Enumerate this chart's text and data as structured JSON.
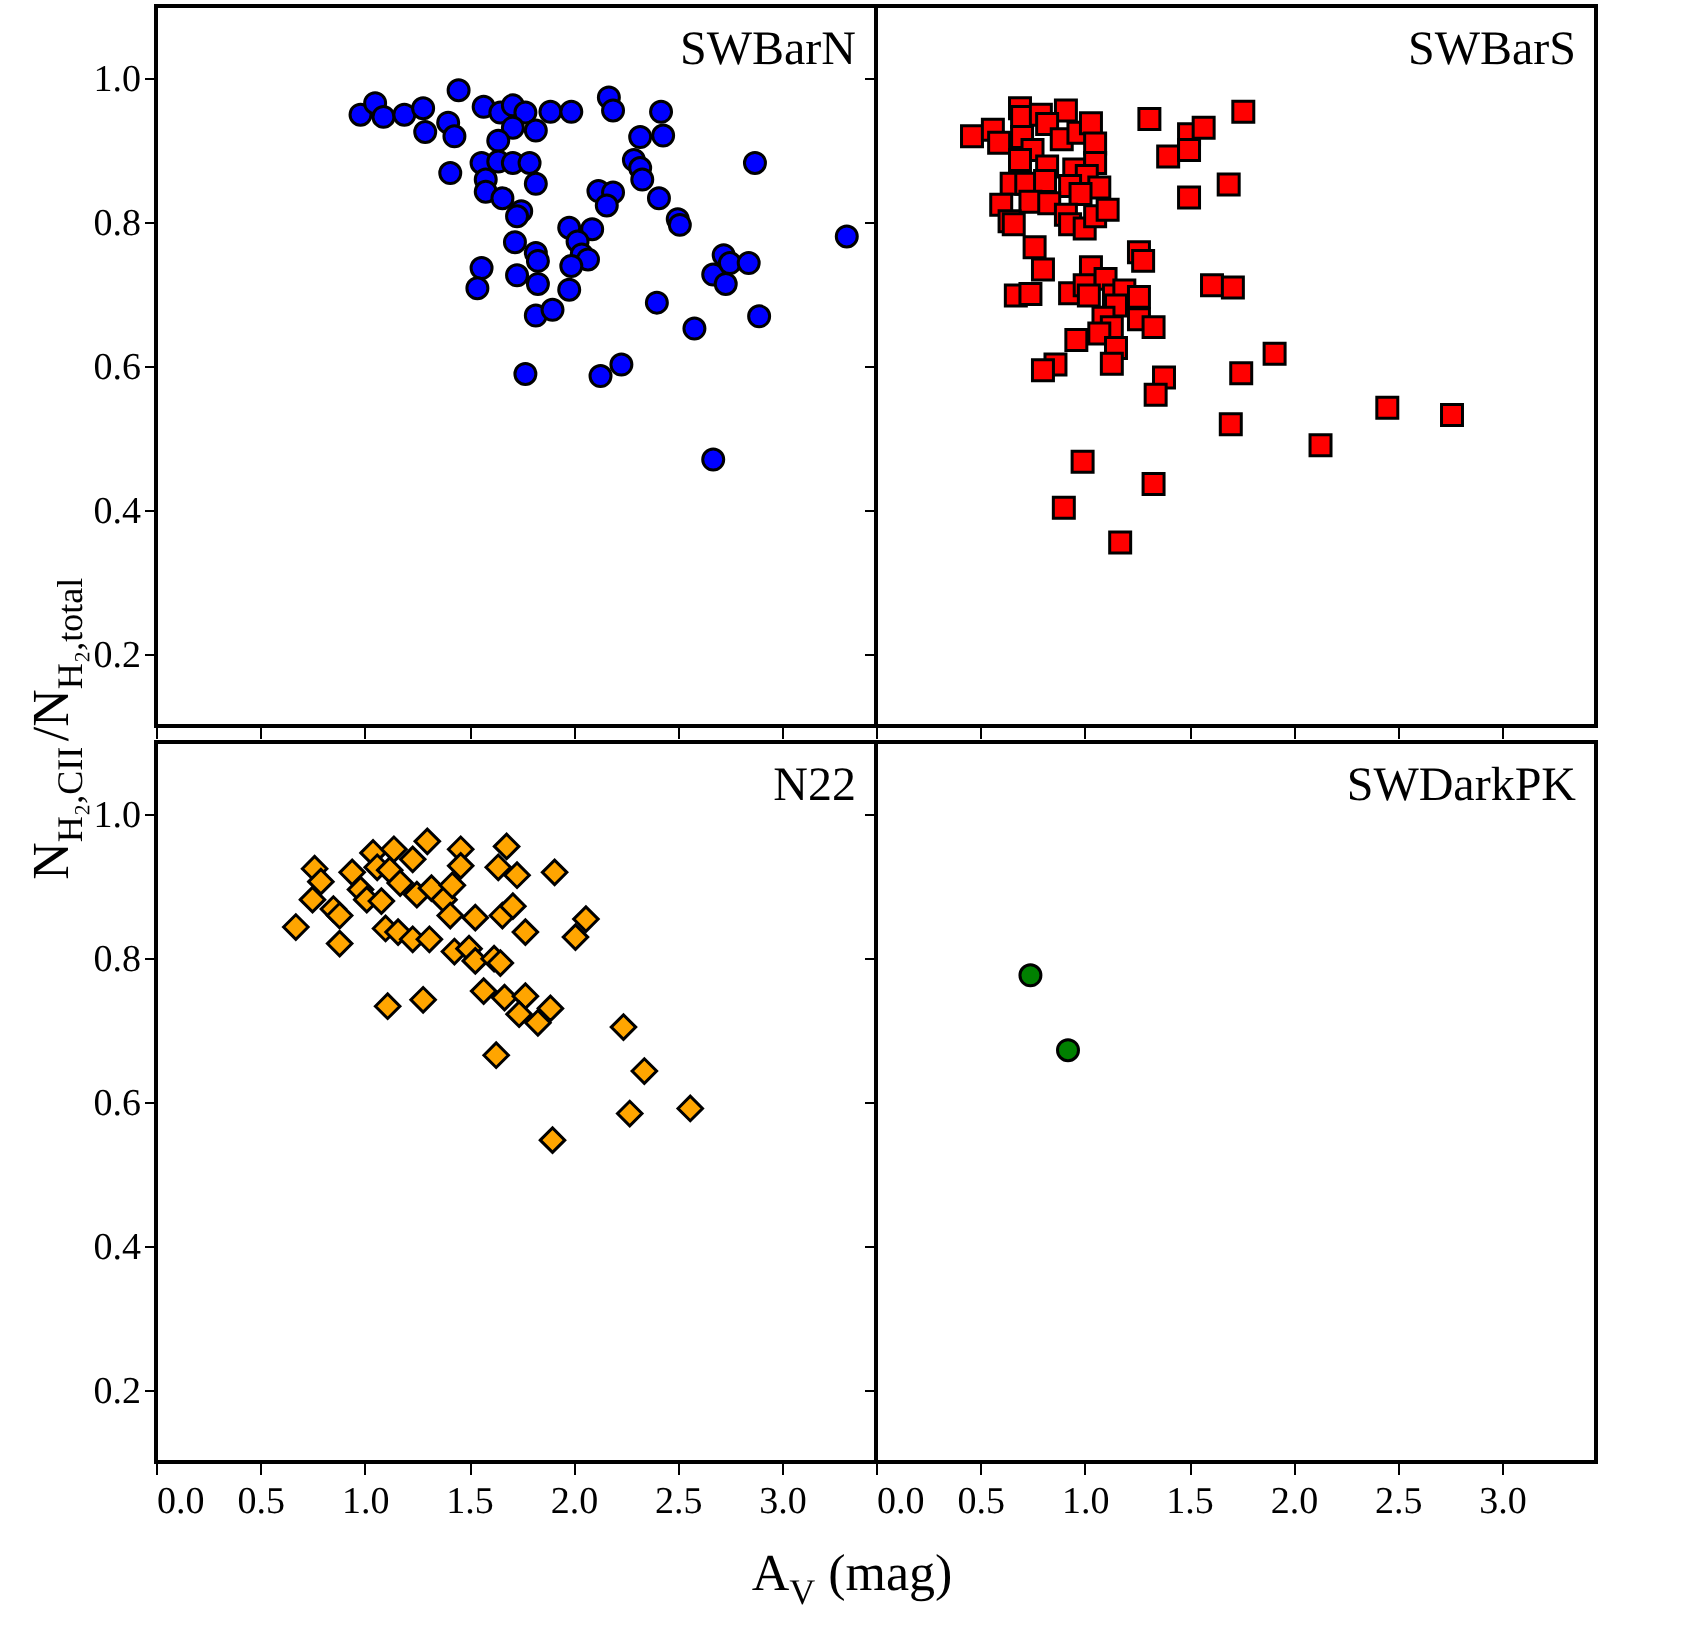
{
  "chart_data": [
    {
      "type": "scatter",
      "title": "SWBarN",
      "ylabel": "N$_{H₂,CII}$/N$_{H₂,total}$",
      "xlim": [
        0,
        3.45
      ],
      "ylim": [
        0.1,
        1.1
      ],
      "xticks": [
        0,
        0.5,
        1,
        1.5,
        2,
        2.5,
        3
      ],
      "yticks": [
        0.2,
        0.4,
        0.6,
        0.8,
        {
          "value": 1,
          "label": "1.0"
        }
      ],
      "tick_labels": "y",
      "marker": "circle",
      "grid": false,
      "series": [
        {
          "color": "#0000ff",
          "x": [
            0.98,
            1.05,
            1.09,
            1.19,
            1.28,
            1.29,
            1.45,
            1.4,
            1.43,
            1.41,
            1.57,
            1.65,
            1.71,
            1.77,
            1.71,
            1.82,
            1.89,
            1.99,
            1.64,
            1.56,
            1.64,
            1.71,
            1.79,
            1.58,
            1.82,
            1.58,
            1.66,
            1.75,
            1.73,
            1.72,
            1.82,
            1.83,
            1.73,
            1.83,
            1.56,
            1.54,
            1.82,
            1.9,
            1.77,
            1.98,
            2.09,
            2.02,
            2.04,
            2.07,
            1.99,
            1.98,
            2.17,
            2.19,
            2.12,
            2.19,
            2.16,
            2.13,
            2.23,
            2.42,
            2.43,
            2.32,
            2.29,
            2.32,
            2.33,
            2.41,
            2.5,
            2.51,
            2.4,
            2.58,
            2.67,
            2.72,
            2.75,
            2.73,
            2.84,
            2.89,
            2.87,
            2.67,
            3.31
          ],
          "values": [
            0.949,
            0.965,
            0.946,
            0.949,
            0.958,
            0.925,
            0.983,
            0.938,
            0.919,
            0.868,
            0.96,
            0.952,
            0.962,
            0.952,
            0.931,
            0.927,
            0.953,
            0.953,
            0.913,
            0.882,
            0.884,
            0.882,
            0.882,
            0.859,
            0.853,
            0.842,
            0.833,
            0.815,
            0.808,
            0.772,
            0.757,
            0.746,
            0.726,
            0.714,
            0.736,
            0.708,
            0.67,
            0.678,
            0.589,
            0.792,
            0.79,
            0.773,
            0.755,
            0.748,
            0.739,
            0.706,
            0.973,
            0.955,
            0.843,
            0.841,
            0.823,
            0.586,
            0.602,
            0.953,
            0.92,
            0.918,
            0.886,
            0.875,
            0.859,
            0.833,
            0.804,
            0.796,
            0.688,
            0.652,
            0.727,
            0.754,
            0.743,
            0.714,
            0.743,
            0.669,
            0.882,
            0.47,
            0.78
          ]
        }
      ]
    },
    {
      "type": "scatter",
      "title": "SWBarS",
      "xlim": [
        0,
        3.45
      ],
      "ylim": [
        0.1,
        1.1
      ],
      "xticks": [
        0,
        0.5,
        1,
        1.5,
        2,
        2.5,
        3
      ],
      "yticks": [
        0.2,
        0.4,
        0.6,
        0.8,
        1
      ],
      "tick_labels": false,
      "marker": "square",
      "grid": false,
      "series": [
        {
          "color": "#ff0000",
          "x": [
            0.46,
            0.56,
            0.59,
            0.69,
            0.7,
            0.79,
            0.91,
            0.82,
            0.89,
            0.97,
            1.03,
            1.05,
            0.7,
            0.75,
            0.69,
            0.82,
            0.95,
            1.05,
            1.01,
            0.65,
            0.72,
            0.81,
            0.93,
            1.07,
            0.98,
            0.6,
            0.74,
            0.83,
            0.64,
            0.66,
            0.91,
            0.93,
            1.0,
            1.05,
            1.11,
            0.76,
            0.8,
            1.26,
            1.28,
            0.67,
            0.74,
            0.93,
            1.03,
            1.0,
            1.1,
            1.02,
            1.14,
            1.19,
            1.26,
            1.15,
            1.09,
            1.26,
            1.33,
            1.13,
            1.07,
            0.96,
            1.15,
            1.13,
            0.86,
            0.8,
            1.31,
            1.4,
            1.5,
            1.5,
            1.57,
            1.76,
            1.69,
            1.5,
            1.61,
            1.71,
            1.38,
            1.34,
            1.75,
            1.91,
            1.7,
            0.99,
            0.9,
            1.33,
            1.17,
            2.13,
            2.45,
            2.76
          ],
          "values": [
            0.919,
            0.928,
            0.91,
            0.958,
            0.946,
            0.949,
            0.955,
            0.936,
            0.915,
            0.924,
            0.937,
            0.909,
            0.918,
            0.9,
            0.886,
            0.877,
            0.873,
            0.882,
            0.864,
            0.853,
            0.853,
            0.857,
            0.85,
            0.848,
            0.839,
            0.824,
            0.828,
            0.826,
            0.801,
            0.797,
            0.81,
            0.797,
            0.791,
            0.808,
            0.817,
            0.765,
            0.734,
            0.758,
            0.746,
            0.698,
            0.7,
            0.701,
            0.737,
            0.712,
            0.721,
            0.698,
            0.698,
            0.705,
            0.696,
            0.684,
            0.667,
            0.665,
            0.654,
            0.654,
            0.645,
            0.636,
            0.625,
            0.603,
            0.602,
            0.594,
            0.943,
            0.891,
            0.922,
            0.9,
            0.931,
            0.953,
            0.852,
            0.834,
            0.712,
            0.709,
            0.584,
            0.56,
            0.59,
            0.617,
            0.519,
            0.467,
            0.403,
            0.436,
            0.355,
            0.49,
            0.542,
            0.532
          ]
        }
      ]
    },
    {
      "type": "scatter",
      "title": "N22",
      "xlabel": "A$_{V}$ (mag)",
      "xlim": [
        0,
        3.45
      ],
      "ylim": [
        0.1,
        1.1
      ],
      "xticks": [
        {
          "value": 0,
          "label": "0.0"
        },
        0.5,
        {
          "value": 1,
          "label": "1.0"
        },
        1.5,
        {
          "value": 2,
          "label": "2.0"
        },
        2.5,
        {
          "value": 3,
          "label": "3.0"
        }
      ],
      "yticks": [
        0.2,
        0.4,
        0.6,
        0.8,
        {
          "value": 1,
          "label": "1.0"
        }
      ],
      "marker": "diamond",
      "grid": false,
      "series": [
        {
          "color": "#ffa500",
          "x": [
            0.76,
            0.79,
            0.75,
            0.67,
            0.85,
            0.88,
            0.88,
            0.94,
            1.04,
            1.06,
            1.12,
            1.14,
            1.23,
            1.3,
            0.98,
            1.01,
            1.08,
            1.17,
            1.25,
            1.32,
            1.38,
            1.42,
            1.46,
            1.46,
            1.1,
            1.16,
            1.23,
            1.31,
            1.41,
            1.53,
            1.43,
            1.5,
            1.53,
            1.62,
            1.65,
            1.64,
            1.68,
            1.73,
            1.91,
            1.66,
            1.71,
            1.77,
            1.57,
            1.67,
            1.77,
            1.74,
            1.83,
            1.89,
            1.11,
            1.28,
            1.63,
            2.01,
            2.06,
            2.24,
            2.34,
            2.27,
            2.56,
            1.9
          ],
          "values": [
            0.924,
            0.906,
            0.881,
            0.843,
            0.868,
            0.859,
            0.82,
            0.919,
            0.946,
            0.926,
            0.922,
            0.951,
            0.937,
            0.962,
            0.895,
            0.881,
            0.879,
            0.904,
            0.888,
            0.897,
            0.881,
            0.901,
            0.951,
            0.928,
            0.841,
            0.836,
            0.826,
            0.826,
            0.859,
            0.856,
            0.809,
            0.813,
            0.796,
            0.799,
            0.793,
            0.926,
            0.955,
            0.915,
            0.919,
            0.859,
            0.872,
            0.836,
            0.754,
            0.745,
            0.747,
            0.722,
            0.71,
            0.73,
            0.733,
            0.742,
            0.665,
            0.829,
            0.854,
            0.704,
            0.643,
            0.584,
            0.591,
            0.547
          ]
        }
      ]
    },
    {
      "type": "scatter",
      "title": "SWDarkPK",
      "xlim": [
        0,
        3.45
      ],
      "ylim": [
        0.1,
        1.1
      ],
      "xticks": [
        {
          "value": 0,
          "label": "0.0"
        },
        0.5,
        {
          "value": 1,
          "label": "1.0"
        },
        1.5,
        {
          "value": 2,
          "label": "2.0"
        },
        2.5,
        {
          "value": 3,
          "label": "3.0"
        }
      ],
      "yticks": [
        0.2,
        0.4,
        0.6,
        0.8,
        1
      ],
      "tick_labels": "x",
      "marker": "circle",
      "grid": false,
      "series": [
        {
          "color": "#008000",
          "x": [
            0.74,
            0.92
          ],
          "values": [
            0.776,
            0.672
          ]
        }
      ]
    }
  ]
}
